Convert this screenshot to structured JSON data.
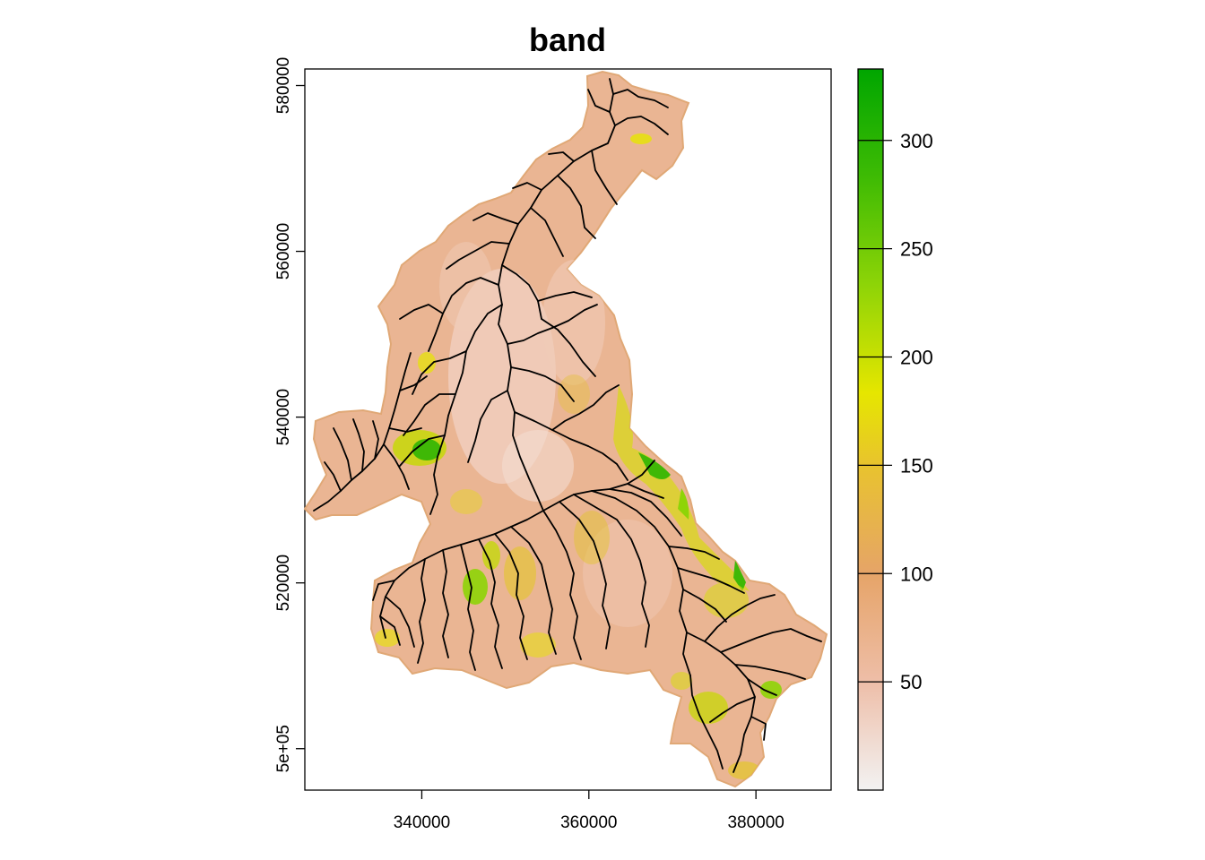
{
  "map": {
    "title": "band",
    "type": "raster",
    "projection": "projected coordinates (m)",
    "xlim": [
      326000,
      389000
    ],
    "ylim": [
      495000,
      582000
    ],
    "x_ticks": [
      {
        "value": 340000,
        "label": "340000"
      },
      {
        "value": 360000,
        "label": "360000"
      },
      {
        "value": 380000,
        "label": "380000"
      }
    ],
    "y_ticks": [
      {
        "value": 500000,
        "label": "5e+05"
      },
      {
        "value": 520000,
        "label": "520000"
      },
      {
        "value": 540000,
        "label": "540000"
      },
      {
        "value": 560000,
        "label": "560000"
      },
      {
        "value": 580000,
        "label": "580000"
      }
    ],
    "overlay": "river network",
    "overlay_color": "#000000"
  },
  "legend": {
    "range": [
      0,
      333
    ],
    "ticks": [
      {
        "value": 50,
        "label": "50"
      },
      {
        "value": 100,
        "label": "100"
      },
      {
        "value": 150,
        "label": "150"
      },
      {
        "value": 200,
        "label": "200"
      },
      {
        "value": 250,
        "label": "250"
      },
      {
        "value": 300,
        "label": "300"
      }
    ],
    "colors": [
      "#f2f2f2",
      "#eebea8",
      "#e6a468",
      "#e8c32e",
      "#e6e600",
      "#8ed407",
      "#3ebb04",
      "#00a600"
    ],
    "placement": "right"
  }
}
